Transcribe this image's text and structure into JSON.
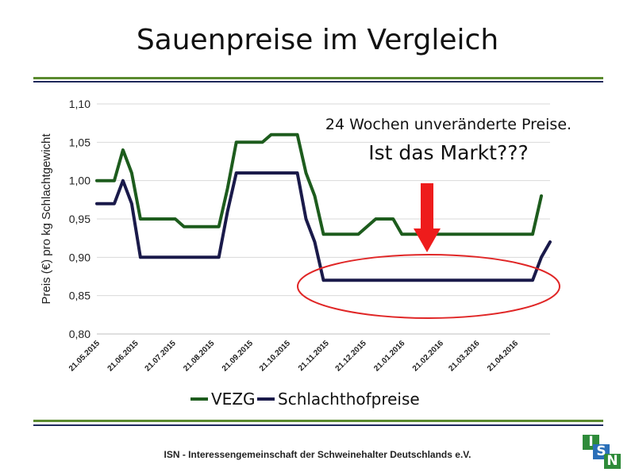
{
  "slide": {
    "title": "Sauenpreise im Vergleich",
    "footer": "ISN - Interessengemeinschaft der Schweinehalter Deutschlands e.V.",
    "logo_text": "ISN"
  },
  "colors": {
    "rule_green": "#5a8a2e",
    "rule_navy": "#1f2a5c",
    "vezg": "#1d5c1d",
    "schlachthof": "#1a1a4a",
    "arrow": "#ee1c1c",
    "ellipse": "#e02626",
    "logo_green": "#2e8b3a",
    "logo_blue": "#2a6fb8"
  },
  "annotation": {
    "line1": "24 Wochen unveränderte Preise.",
    "line2": "Ist das Markt???"
  },
  "chart_data": {
    "type": "line",
    "title": "",
    "xlabel": "",
    "ylabel": "Preis (€) pro kg Schlachtgewicht",
    "ylim": [
      0.8,
      1.1
    ],
    "yticks": [
      "0,80",
      "0,85",
      "0,90",
      "0,95",
      "1,00",
      "1,05",
      "1,10"
    ],
    "grid": true,
    "legend_position": "bottom",
    "x_start": "2015-05-21",
    "x_end": "2016-05-19",
    "xticks": [
      {
        "date": "2015-05-21",
        "label": "21.05.2015"
      },
      {
        "date": "2015-06-21",
        "label": "21.06.2015"
      },
      {
        "date": "2015-07-21",
        "label": "21.07.2015"
      },
      {
        "date": "2015-08-21",
        "label": "21.08.2015"
      },
      {
        "date": "2015-09-21",
        "label": "21.09.2015"
      },
      {
        "date": "2015-10-21",
        "label": "21.10.2015"
      },
      {
        "date": "2015-11-21",
        "label": "21.11.2015"
      },
      {
        "date": "2015-12-21",
        "label": "21.12.2015"
      },
      {
        "date": "2016-01-21",
        "label": "21.01.2016"
      },
      {
        "date": "2016-02-21",
        "label": "21.02.2016"
      },
      {
        "date": "2016-03-21",
        "label": "21.03.2016"
      },
      {
        "date": "2016-04-21",
        "label": "21.04.2016"
      }
    ],
    "series": [
      {
        "name": "VEZG",
        "points": [
          [
            "2015-05-21",
            1.0
          ],
          [
            "2015-06-04",
            1.0
          ],
          [
            "2015-06-11",
            1.04
          ],
          [
            "2015-06-18",
            1.01
          ],
          [
            "2015-06-25",
            0.95
          ],
          [
            "2015-07-09",
            0.95
          ],
          [
            "2015-07-23",
            0.95
          ],
          [
            "2015-07-30",
            0.94
          ],
          [
            "2015-08-13",
            0.94
          ],
          [
            "2015-08-27",
            0.94
          ],
          [
            "2015-09-03",
            0.99
          ],
          [
            "2015-09-10",
            1.05
          ],
          [
            "2015-09-24",
            1.05
          ],
          [
            "2015-10-01",
            1.05
          ],
          [
            "2015-10-08",
            1.06
          ],
          [
            "2015-10-22",
            1.06
          ],
          [
            "2015-10-29",
            1.06
          ],
          [
            "2015-11-05",
            1.01
          ],
          [
            "2015-11-12",
            0.98
          ],
          [
            "2015-11-19",
            0.93
          ],
          [
            "2015-12-03",
            0.93
          ],
          [
            "2015-12-17",
            0.93
          ],
          [
            "2015-12-31",
            0.95
          ],
          [
            "2016-01-14",
            0.95
          ],
          [
            "2016-01-21",
            0.93
          ],
          [
            "2016-02-18",
            0.93
          ],
          [
            "2016-03-17",
            0.93
          ],
          [
            "2016-04-14",
            0.93
          ],
          [
            "2016-05-05",
            0.93
          ],
          [
            "2016-05-12",
            0.98
          ]
        ]
      },
      {
        "name": "Schlachthofpreise",
        "points": [
          [
            "2015-05-21",
            0.97
          ],
          [
            "2015-06-04",
            0.97
          ],
          [
            "2015-06-11",
            1.0
          ],
          [
            "2015-06-18",
            0.97
          ],
          [
            "2015-06-25",
            0.9
          ],
          [
            "2015-07-23",
            0.9
          ],
          [
            "2015-08-20",
            0.9
          ],
          [
            "2015-08-27",
            0.9
          ],
          [
            "2015-09-03",
            0.96
          ],
          [
            "2015-09-10",
            1.01
          ],
          [
            "2015-10-08",
            1.01
          ],
          [
            "2015-10-29",
            1.01
          ],
          [
            "2015-11-05",
            0.95
          ],
          [
            "2015-11-12",
            0.92
          ],
          [
            "2015-11-19",
            0.87
          ],
          [
            "2015-12-17",
            0.87
          ],
          [
            "2016-01-21",
            0.87
          ],
          [
            "2016-02-18",
            0.87
          ],
          [
            "2016-03-17",
            0.87
          ],
          [
            "2016-04-14",
            0.87
          ],
          [
            "2016-05-05",
            0.87
          ],
          [
            "2016-05-12",
            0.9
          ],
          [
            "2016-05-19",
            0.92
          ]
        ]
      }
    ]
  }
}
